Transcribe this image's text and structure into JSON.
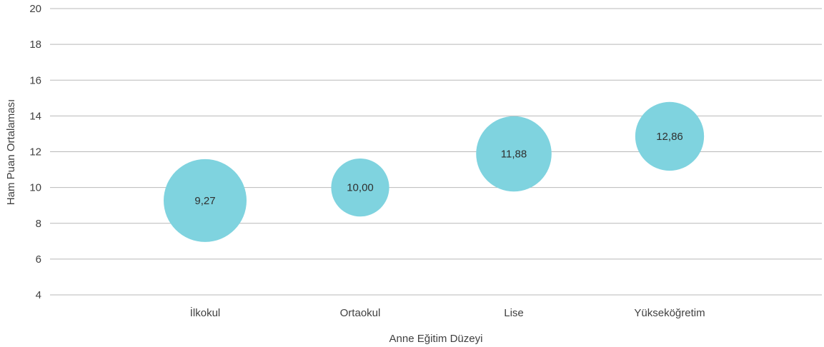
{
  "chart_data": {
    "type": "scatter",
    "subtype": "bubble",
    "title": "",
    "xlabel": "Anne Eğitim Düzeyi",
    "ylabel": "Ham Puan Ortalaması",
    "ylim": [
      4,
      20
    ],
    "yticks": [
      4,
      6,
      8,
      10,
      12,
      14,
      16,
      18,
      20
    ],
    "ytick_labels": [
      "4",
      "6",
      "8",
      "10",
      "12",
      "14",
      "16",
      "18",
      "20"
    ],
    "grid": true,
    "legend": "none",
    "bubble_color": "#7fd3df",
    "categories": [
      "İlkokul",
      "Ortaokul",
      "Lise",
      "Yükseköğretim"
    ],
    "values": [
      9.27,
      10.0,
      11.88,
      12.86
    ],
    "data_labels": [
      "9,27",
      "10,00",
      "11,88",
      "12,86"
    ],
    "relative_bubble_size": [
      1.0,
      0.7,
      0.91,
      0.83
    ]
  }
}
